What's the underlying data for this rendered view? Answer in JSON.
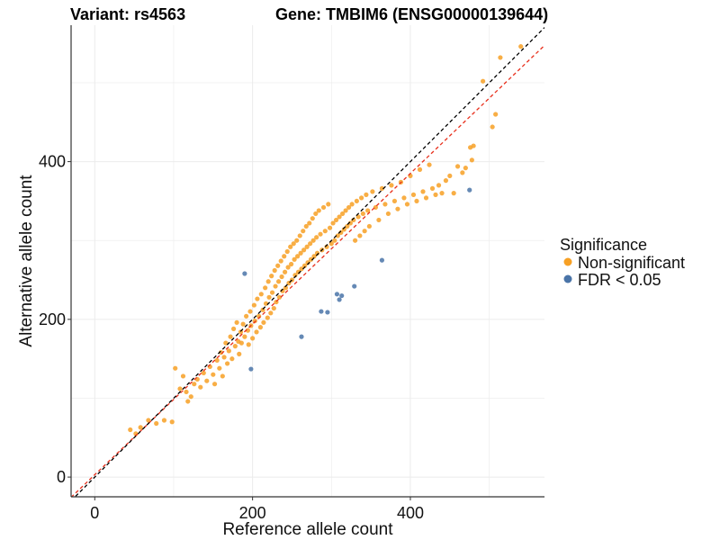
{
  "colors": {
    "non_significant": "#f7a024",
    "significant": "#4a74a8",
    "identity_line": "#000000",
    "regression_line": "#e8301c",
    "grid": "#ebebeb",
    "axis": "#333333"
  },
  "chart_data": {
    "type": "scatter",
    "title_left": "Variant: rs4563",
    "title_right": "Gene: TMBIM6 (ENSG00000139644)",
    "xlabel": "Reference allele count",
    "ylabel": "Alternative allele count",
    "xlim": [
      -30,
      570
    ],
    "ylim": [
      -25,
      573
    ],
    "xticks": [
      0,
      200,
      400
    ],
    "yticks": [
      0,
      200,
      400
    ],
    "grid_major": [
      0,
      200,
      400
    ],
    "grid_minor": [
      100,
      300,
      500
    ],
    "identity_line": {
      "slope": 1,
      "intercept": 0,
      "style": "dashed"
    },
    "regression_line": {
      "slope": 0.955,
      "intercept": 3,
      "style": "dashed"
    },
    "legend": {
      "title": "Significance",
      "position": "right",
      "entries": [
        {
          "key": "non_significant",
          "label": "Non-significant"
        },
        {
          "key": "significant",
          "label": "FDR < 0.05"
        }
      ]
    },
    "series": [
      {
        "name": "FDR < 0.05",
        "key": "significant",
        "points": [
          [
            190,
            258
          ],
          [
            198,
            137
          ],
          [
            262,
            178
          ],
          [
            287,
            210
          ],
          [
            295,
            209
          ],
          [
            307,
            232
          ],
          [
            310,
            225
          ],
          [
            313,
            230
          ],
          [
            329,
            242
          ],
          [
            364,
            275
          ],
          [
            475,
            364
          ]
        ]
      },
      {
        "name": "Non-significant",
        "key": "non_significant",
        "points": [
          [
            45,
            60
          ],
          [
            52,
            55
          ],
          [
            58,
            63
          ],
          [
            68,
            72
          ],
          [
            78,
            68
          ],
          [
            88,
            72
          ],
          [
            98,
            70
          ],
          [
            102,
            138
          ],
          [
            108,
            112
          ],
          [
            112,
            128
          ],
          [
            116,
            108
          ],
          [
            118,
            96
          ],
          [
            122,
            102
          ],
          [
            126,
            118
          ],
          [
            130,
            124
          ],
          [
            134,
            114
          ],
          [
            138,
            132
          ],
          [
            142,
            122
          ],
          [
            146,
            140
          ],
          [
            150,
            130
          ],
          [
            152,
            118
          ],
          [
            155,
            148
          ],
          [
            158,
            138
          ],
          [
            160,
            158
          ],
          [
            162,
            128
          ],
          [
            164,
            152
          ],
          [
            166,
            170
          ],
          [
            168,
            144
          ],
          [
            170,
            160
          ],
          [
            172,
            178
          ],
          [
            174,
            150
          ],
          [
            176,
            188
          ],
          [
            178,
            166
          ],
          [
            180,
            196
          ],
          [
            182,
            172
          ],
          [
            183,
            156
          ],
          [
            185,
            184
          ],
          [
            186,
            170
          ],
          [
            188,
            194
          ],
          [
            190,
            178
          ],
          [
            192,
            204
          ],
          [
            194,
            186
          ],
          [
            195,
            168
          ],
          [
            197,
            210
          ],
          [
            198,
            192
          ],
          [
            200,
            176
          ],
          [
            202,
            218
          ],
          [
            203,
            198
          ],
          [
            205,
            184
          ],
          [
            206,
            226
          ],
          [
            208,
            204
          ],
          [
            210,
            190
          ],
          [
            211,
            232
          ],
          [
            213,
            212
          ],
          [
            214,
            196
          ],
          [
            216,
            240
          ],
          [
            217,
            220
          ],
          [
            219,
            202
          ],
          [
            220,
            248
          ],
          [
            221,
            228
          ],
          [
            223,
            208
          ],
          [
            224,
            255
          ],
          [
            225,
            234
          ],
          [
            227,
            214
          ],
          [
            228,
            262
          ],
          [
            229,
            242
          ],
          [
            230,
            222
          ],
          [
            232,
            268
          ],
          [
            233,
            248
          ],
          [
            234,
            228
          ],
          [
            236,
            274
          ],
          [
            237,
            254
          ],
          [
            238,
            236
          ],
          [
            240,
            280
          ],
          [
            241,
            260
          ],
          [
            242,
            240
          ],
          [
            244,
            286
          ],
          [
            245,
            266
          ],
          [
            246,
            246
          ],
          [
            248,
            292
          ],
          [
            249,
            270
          ],
          [
            250,
            250
          ],
          [
            252,
            296
          ],
          [
            253,
            276
          ],
          [
            254,
            256
          ],
          [
            256,
            300
          ],
          [
            257,
            280
          ],
          [
            258,
            260
          ],
          [
            260,
            306
          ],
          [
            261,
            284
          ],
          [
            262,
            264
          ],
          [
            264,
            312
          ],
          [
            265,
            288
          ],
          [
            266,
            268
          ],
          [
            268,
            318
          ],
          [
            269,
            292
          ],
          [
            270,
            272
          ],
          [
            272,
            322
          ],
          [
            273,
            296
          ],
          [
            274,
            276
          ],
          [
            276,
            328
          ],
          [
            277,
            300
          ],
          [
            278,
            280
          ],
          [
            280,
            334
          ],
          [
            281,
            304
          ],
          [
            282,
            284
          ],
          [
            284,
            338
          ],
          [
            286,
            308
          ],
          [
            288,
            288
          ],
          [
            290,
            342
          ],
          [
            292,
            312
          ],
          [
            294,
            292
          ],
          [
            296,
            346
          ],
          [
            298,
            316
          ],
          [
            300,
            296
          ],
          [
            302,
            322
          ],
          [
            304,
            300
          ],
          [
            306,
            326
          ],
          [
            308,
            306
          ],
          [
            310,
            330
          ],
          [
            312,
            310
          ],
          [
            314,
            334
          ],
          [
            316,
            314
          ],
          [
            318,
            338
          ],
          [
            320,
            318
          ],
          [
            322,
            342
          ],
          [
            324,
            322
          ],
          [
            326,
            346
          ],
          [
            328,
            326
          ],
          [
            330,
            300
          ],
          [
            332,
            350
          ],
          [
            334,
            330
          ],
          [
            336,
            306
          ],
          [
            338,
            354
          ],
          [
            340,
            334
          ],
          [
            342,
            312
          ],
          [
            344,
            358
          ],
          [
            346,
            338
          ],
          [
            348,
            318
          ],
          [
            352,
            362
          ],
          [
            356,
            342
          ],
          [
            360,
            326
          ],
          [
            364,
            366
          ],
          [
            368,
            346
          ],
          [
            372,
            334
          ],
          [
            376,
            370
          ],
          [
            380,
            350
          ],
          [
            384,
            340
          ],
          [
            388,
            374
          ],
          [
            392,
            354
          ],
          [
            396,
            346
          ],
          [
            400,
            382
          ],
          [
            404,
            358
          ],
          [
            408,
            350
          ],
          [
            412,
            390
          ],
          [
            416,
            362
          ],
          [
            420,
            354
          ],
          [
            424,
            396
          ],
          [
            428,
            366
          ],
          [
            432,
            358
          ],
          [
            436,
            370
          ],
          [
            440,
            360
          ],
          [
            445,
            376
          ],
          [
            450,
            382
          ],
          [
            455,
            360
          ],
          [
            460,
            394
          ],
          [
            466,
            386
          ],
          [
            470,
            392
          ],
          [
            476,
            418
          ],
          [
            478,
            402
          ],
          [
            480,
            420
          ],
          [
            492,
            502
          ],
          [
            504,
            444
          ],
          [
            508,
            460
          ],
          [
            514,
            532
          ],
          [
            540,
            546
          ]
        ]
      }
    ]
  }
}
